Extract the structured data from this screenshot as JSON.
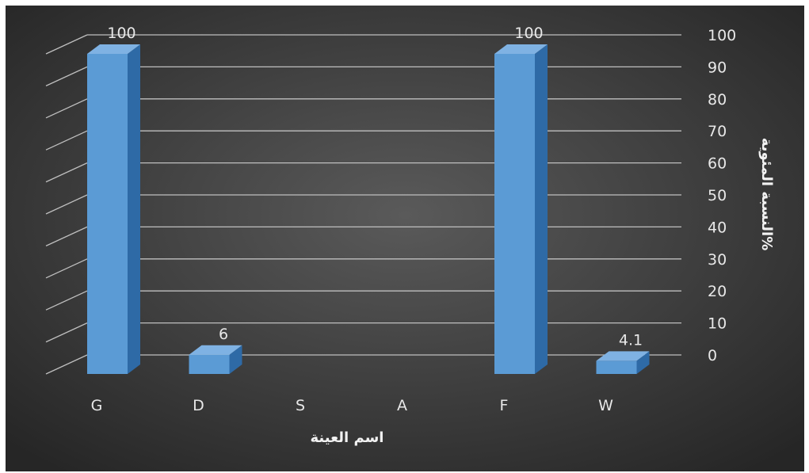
{
  "chart_data": {
    "type": "bar",
    "categories": [
      "G",
      "D",
      "S",
      "A",
      "F",
      "W"
    ],
    "values": [
      100,
      6,
      0,
      0,
      100,
      4.1
    ],
    "data_labels": [
      "100",
      "6",
      "",
      "",
      "100",
      "4.1"
    ],
    "title": "",
    "xlabel": "اسم العينة",
    "ylabel": "%النسبة المئوية",
    "ylim": [
      0,
      100
    ],
    "yticks": [
      "0",
      "10",
      "20",
      "30",
      "40",
      "50",
      "60",
      "70",
      "80",
      "90",
      "100"
    ],
    "grid": true,
    "y_axis_side": "right",
    "style": "3d-column",
    "colors": {
      "bar_front": "#5b9bd5",
      "bar_side": "#2e6aa6",
      "bar_top": "#7fb2e3",
      "gridline": "#bfbfbf",
      "background_center": "#5a5a5a",
      "background_edge": "#262626",
      "text": "#e8e8e8"
    }
  }
}
